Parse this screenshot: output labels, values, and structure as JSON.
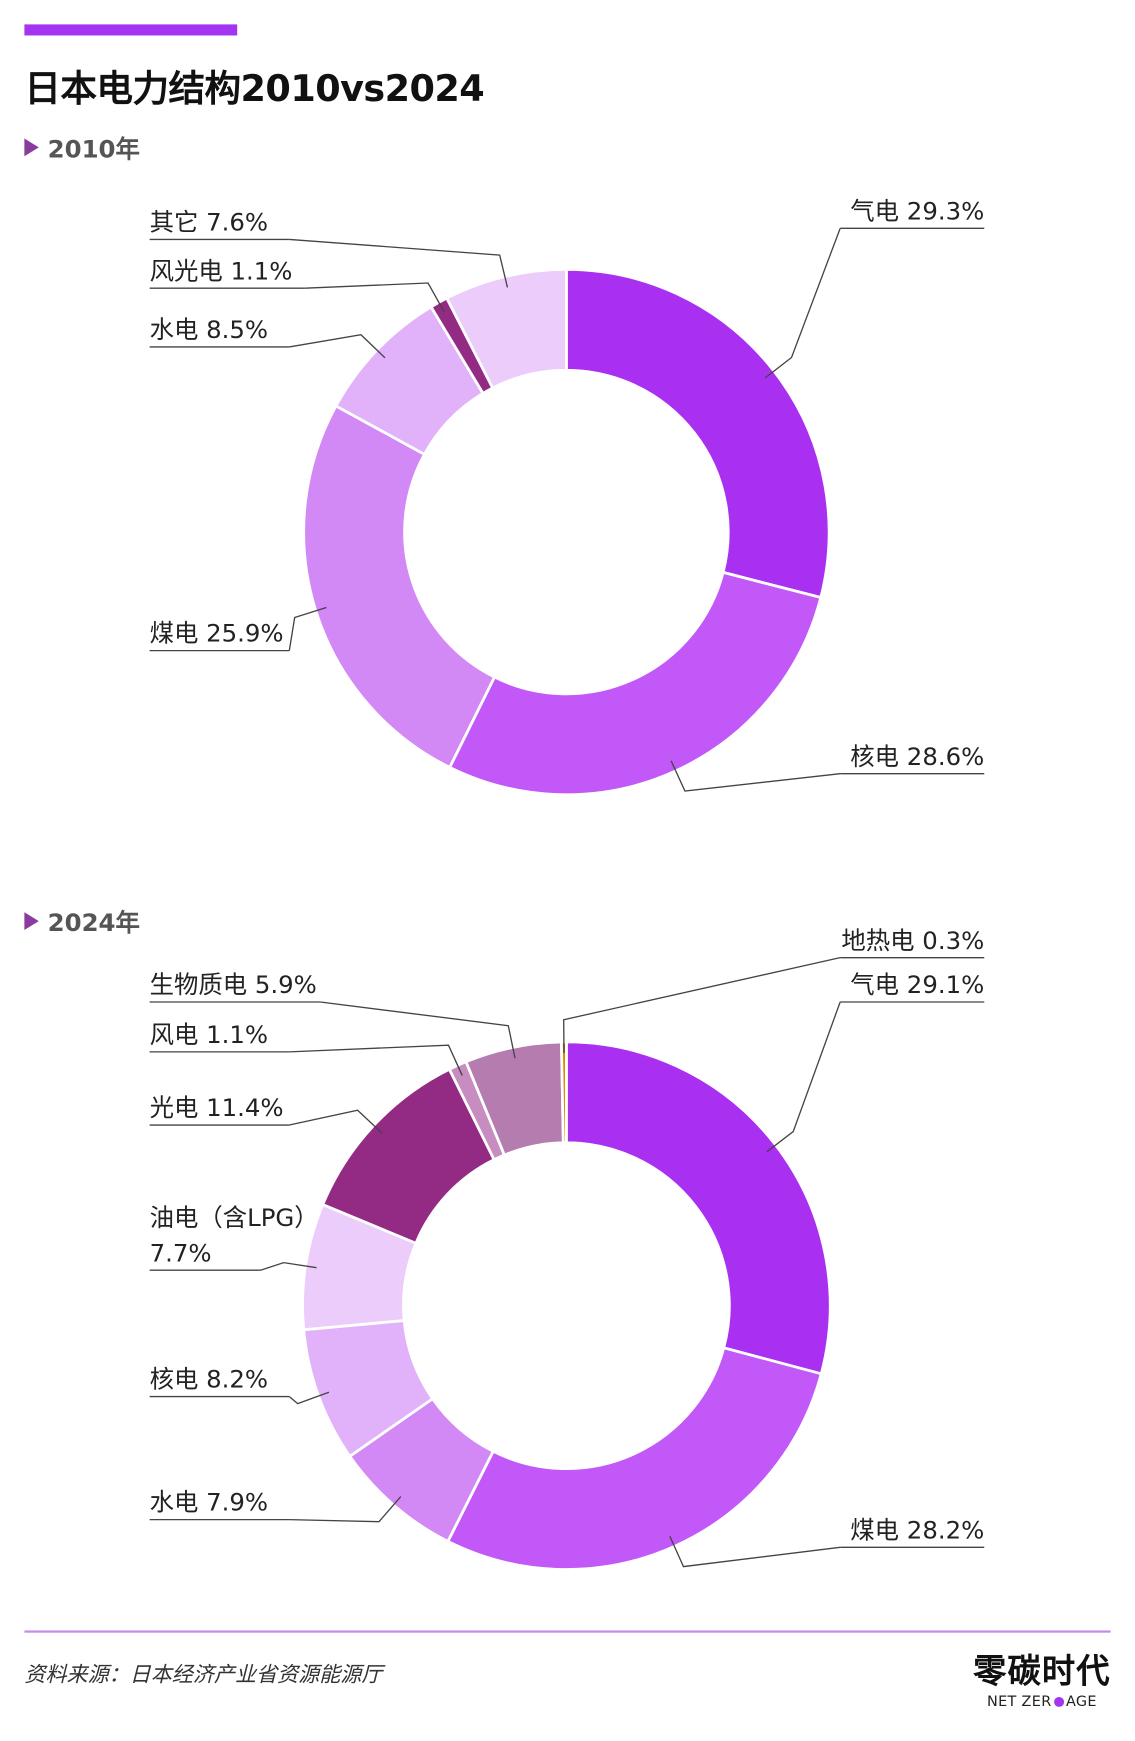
{
  "header": {
    "title": "日本电力结构2010vs2024",
    "accent_color": "#a334f0"
  },
  "footer": {
    "source": "资料来源：日本经济产业省资源能源厅",
    "brand_name": "零碳时代",
    "brand_sub_left": "NET ZER",
    "brand_sub_right": "AGE"
  },
  "chart_data": [
    {
      "type": "pie",
      "title": "2010年",
      "donut": true,
      "direction": "clockwise from 12 o'clock",
      "slices": [
        {
          "label": "气电",
          "value": 29.3,
          "value_label": "29.3%",
          "color": "#a92ff1"
        },
        {
          "label": "核电",
          "value": 28.6,
          "value_label": "28.6%",
          "color": "#c158f7"
        },
        {
          "label": "煤电",
          "value": 25.9,
          "value_label": "25.9%",
          "color": "#d289f5"
        },
        {
          "label": "水电",
          "value": 8.5,
          "value_label": "8.5%",
          "color": "#e1b2f9"
        },
        {
          "label": "风光电",
          "value": 1.1,
          "value_label": "1.1%",
          "color": "#932a84"
        },
        {
          "label": "其它",
          "value": 7.6,
          "value_label": "7.6%",
          "color": "#ecccfb"
        }
      ]
    },
    {
      "type": "pie",
      "title": "2024年",
      "donut": true,
      "direction": "clockwise from 12 o'clock",
      "slices": [
        {
          "label": "气电",
          "value": 29.1,
          "value_label": "29.1%",
          "color": "#a92ff1"
        },
        {
          "label": "煤电",
          "value": 28.2,
          "value_label": "28.2%",
          "color": "#c158f7"
        },
        {
          "label": "水电",
          "value": 7.9,
          "value_label": "7.9%",
          "color": "#d289f5"
        },
        {
          "label": "核电",
          "value": 8.2,
          "value_label": "8.2%",
          "color": "#e1b2f9"
        },
        {
          "label": "油电（含LPG）",
          "value": 7.7,
          "value_label": "7.7%",
          "color": "#ecccfb"
        },
        {
          "label": "光电",
          "value": 11.4,
          "value_label": "11.4%",
          "color": "#932a84"
        },
        {
          "label": "风电",
          "value": 1.1,
          "value_label": "1.1%",
          "color": "#c78cc0"
        },
        {
          "label": "生物质电",
          "value": 5.9,
          "value_label": "5.9%",
          "color": "#b57caf"
        },
        {
          "label": "地热电",
          "value": 0.3,
          "value_label": "0.3%",
          "color": "#d98a00"
        }
      ]
    }
  ]
}
